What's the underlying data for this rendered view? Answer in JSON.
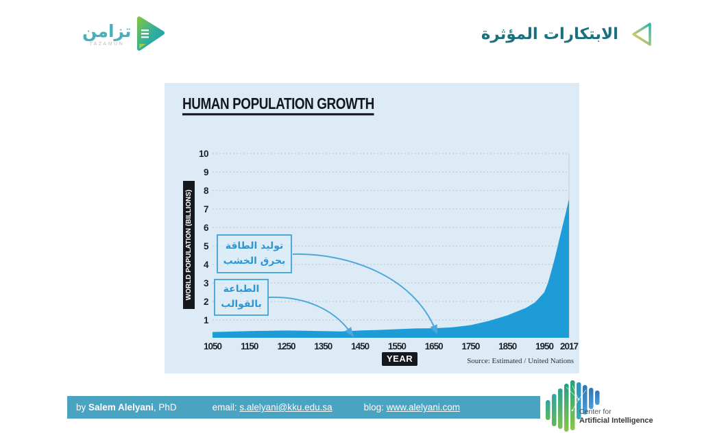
{
  "header": {
    "brand": {
      "name_ar": "تزامن",
      "name_en": "TAZAMUN"
    },
    "title_ar": "الابتكارات المؤثرة"
  },
  "chart_data": {
    "type": "area",
    "title": "HUMAN POPULATION GROWTH",
    "xlabel": "YEAR",
    "ylabel": "WORLD POPULATION (BILLIONS)",
    "source": "Source: Estimated / United Nations",
    "xlim": [
      1050,
      2017
    ],
    "ylim": [
      0,
      10
    ],
    "xticks": [
      1050,
      1150,
      1250,
      1350,
      1450,
      1550,
      1650,
      1750,
      1850,
      1950,
      2017
    ],
    "yticks": [
      1,
      2,
      3,
      4,
      5,
      6,
      7,
      8,
      9,
      10
    ],
    "grid": "dashed horizontal gridlines, legend none",
    "area_color": "#1e9cd8",
    "series": [
      {
        "name": "World population (billions)",
        "points": [
          [
            1050,
            0.35
          ],
          [
            1150,
            0.4
          ],
          [
            1250,
            0.43
          ],
          [
            1300,
            0.42
          ],
          [
            1350,
            0.4
          ],
          [
            1400,
            0.38
          ],
          [
            1450,
            0.43
          ],
          [
            1500,
            0.46
          ],
          [
            1550,
            0.5
          ],
          [
            1600,
            0.54
          ],
          [
            1650,
            0.55
          ],
          [
            1700,
            0.6
          ],
          [
            1750,
            0.72
          ],
          [
            1800,
            0.95
          ],
          [
            1850,
            1.25
          ],
          [
            1900,
            1.65
          ],
          [
            1925,
            1.95
          ],
          [
            1950,
            2.5
          ],
          [
            1960,
            3.0
          ],
          [
            1970,
            3.7
          ],
          [
            1980,
            4.45
          ],
          [
            1990,
            5.3
          ],
          [
            2000,
            6.12
          ],
          [
            2010,
            6.93
          ],
          [
            2017,
            7.55
          ]
        ]
      }
    ],
    "annotations": [
      {
        "lines": [
          "توليد الطاقة",
          "بحرق الخشب"
        ],
        "target_year": 1655,
        "target_value": 0.6
      },
      {
        "lines": [
          "الطباعة",
          "بالقوالب"
        ],
        "target_year": 1425,
        "target_value": 0.45
      }
    ]
  },
  "footer": {
    "by_label": "by",
    "author": "Salem Alelyani",
    "degree": ", PhD",
    "email_label": "email:",
    "email": "s.alelyani@kku.edu.sa",
    "blog_label": "blog:",
    "blog": "www.alelyani.com",
    "bar_color": "#4ba3c2"
  },
  "cai_logo": {
    "line1": "Center for",
    "line2": "Artificial Intelligence"
  },
  "colors": {
    "panel_bg": "#dcebf5",
    "area_blue": "#1e9cd8",
    "annotation_blue": "#4fa8dc",
    "title_teal": "#1b7080",
    "brand_teal": "#48b0ba"
  }
}
